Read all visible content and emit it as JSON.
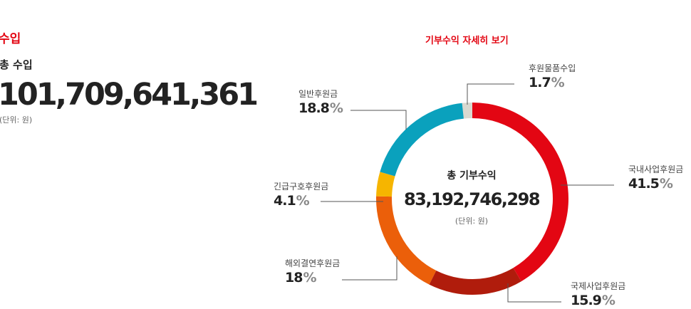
{
  "income": {
    "title": "수입",
    "total_label": "총 수입",
    "total_value": "101,709,641,361",
    "unit_note": "(단위: 원)"
  },
  "detail": {
    "link_label": "기부수익 자세히 보기",
    "center_label": "총 기부수익",
    "center_value": "83,192,746,298",
    "center_unit": "(단위: 원)"
  },
  "callouts": [
    {
      "name": "후원물품수입",
      "value": "1.7"
    },
    {
      "name": "국내사업후원금",
      "value": "41.5"
    },
    {
      "name": "국제사업후원금",
      "value": "15.9"
    },
    {
      "name": "해외결연후원금",
      "value": "18"
    },
    {
      "name": "긴급구호후원금",
      "value": "4.1"
    },
    {
      "name": "일반후원금",
      "value": "18.8"
    }
  ],
  "percent_symbol": "%",
  "chart_data": {
    "type": "pie",
    "title": "",
    "categories": [
      "후원물품수입",
      "국내사업후원금",
      "국제사업후원금",
      "해외결연후원금",
      "긴급구호후원금",
      "일반후원금"
    ],
    "values": [
      1.7,
      41.5,
      15.9,
      18,
      4.1,
      18.8
    ],
    "colors": [
      "#d9d9d0",
      "#e30613",
      "#b01c0c",
      "#eb5f0a",
      "#f6b500",
      "#0aa1bd"
    ],
    "donut": true
  }
}
